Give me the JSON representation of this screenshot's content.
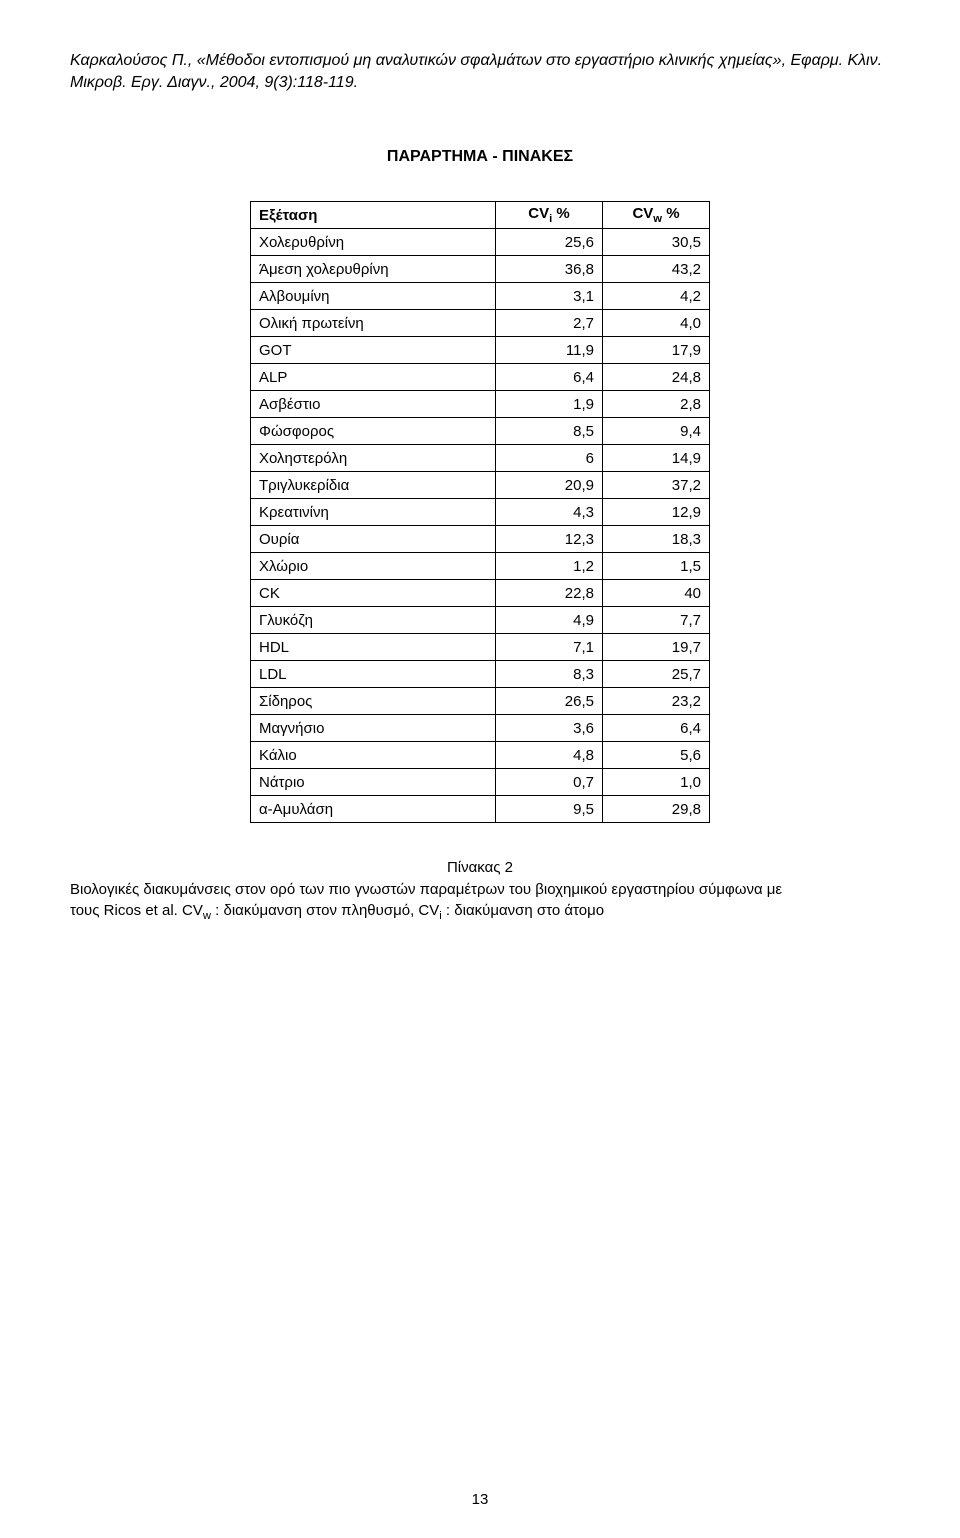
{
  "citation": {
    "line1": "Καρκαλούσος Π., «Μέθοδοι εντοπισμού μη αναλυτικών σφαλμάτων στο εργαστήριο κλινικής χημείας», Εφαρμ. Κλιν.",
    "line2": "Μικροβ. Εργ. Διαγν., 2004, 9(3):118-119."
  },
  "appendix_title": "ΠΑΡΑΡΤΗΜΑ - ΠΙΝΑΚΕΣ",
  "table": {
    "type": "table",
    "header": {
      "col1": "Εξέταση",
      "col2_prefix": "CV",
      "col2_sub": "i",
      "col2_suffix": " %",
      "col3_prefix": "CV",
      "col3_sub": "w",
      "col3_suffix": " %"
    },
    "rows": [
      [
        "Χολερυθρίνη",
        "25,6",
        "30,5"
      ],
      [
        "Άμεση χολερυθρίνη",
        "36,8",
        "43,2"
      ],
      [
        "Αλβουμίνη",
        "3,1",
        "4,2"
      ],
      [
        "Ολική πρωτείνη",
        "2,7",
        "4,0"
      ],
      [
        "GOT",
        "11,9",
        "17,9"
      ],
      [
        "ALP",
        "6,4",
        "24,8"
      ],
      [
        "Ασβέστιο",
        "1,9",
        "2,8"
      ],
      [
        "Φώσφορος",
        "8,5",
        "9,4"
      ],
      [
        "Χοληστερόλη",
        "6",
        "14,9"
      ],
      [
        "Τριγλυκερίδια",
        "20,9",
        "37,2"
      ],
      [
        "Κρεατινίνη",
        "4,3",
        "12,9"
      ],
      [
        "Ουρία",
        "12,3",
        "18,3"
      ],
      [
        "Χλώριο",
        "1,2",
        "1,5"
      ],
      [
        "CK",
        "22,8",
        "40"
      ],
      [
        "Γλυκόζη",
        "4,9",
        "7,7"
      ],
      [
        "HDL",
        "7,1",
        "19,7"
      ],
      [
        "LDL",
        "8,3",
        "25,7"
      ],
      [
        "Σίδηρος",
        "26,5",
        "23,2"
      ],
      [
        "Μαγνήσιο",
        "3,6",
        "6,4"
      ],
      [
        "Κάλιο",
        "4,8",
        "5,6"
      ],
      [
        "Νάτριο",
        "0,7",
        "1,0"
      ],
      [
        "α-Αμυλάση",
        "9,5",
        "29,8"
      ]
    ],
    "border_color": "#000000",
    "background_color": "#ffffff",
    "font_size_pt": 11
  },
  "caption": {
    "title": "Πίνακας 2",
    "body_line1": "Βιολογικές διακυμάνσεις  στον ορό των πιο γνωστών παραμέτρων του βιοχημικού εργαστηρίου σύμφωνα με",
    "body_prefix": "τους Ricos et al. CV",
    "sub1": "w",
    "mid": " : διακύμανση στον πληθυσμό, CV",
    "sub2": "i",
    "suffix": " : διακύμανση στο άτομο"
  },
  "page_number": "13"
}
